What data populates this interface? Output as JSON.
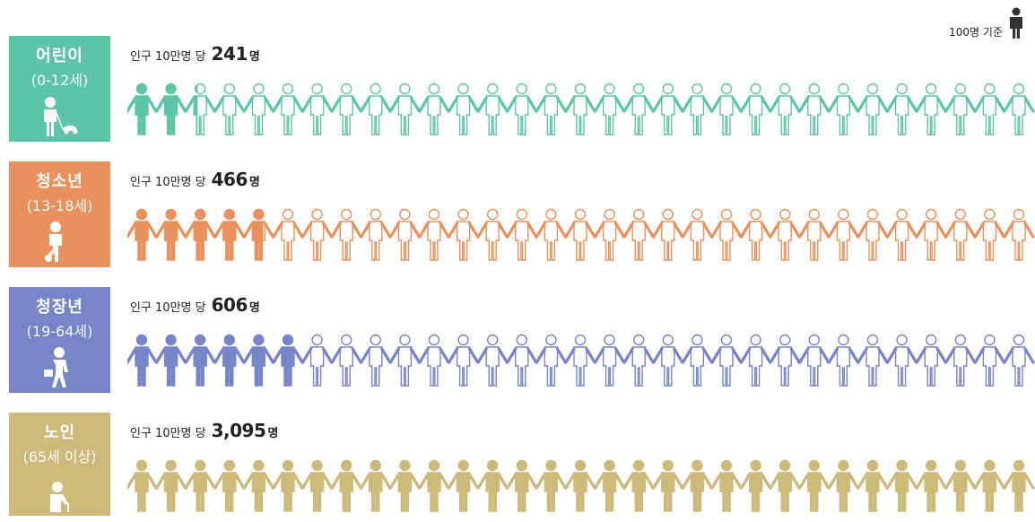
{
  "legend": {
    "text": "100명 기준",
    "icon": "person-icon"
  },
  "rate_prefix": "인구 10만명 당",
  "rate_unit": "명",
  "groups": [
    {
      "name": "어린이",
      "range": "(0-12세)",
      "value": "241",
      "color": "#5ec4a7",
      "icon": "child-icon"
    },
    {
      "name": "청소년",
      "range": "(13-18세)",
      "value": "466",
      "color": "#e8915d",
      "icon": "teen-soccer-icon"
    },
    {
      "name": "청장년",
      "range": "(19-64세)",
      "value": "606",
      "color": "#7585c8",
      "icon": "businessman-icon"
    },
    {
      "name": "노인",
      "range": "(65세 이상)",
      "value": "3,095",
      "color": "#cdb97a",
      "icon": "elderly-cane-icon"
    }
  ],
  "chart_data": {
    "type": "pictogram",
    "unit_per_icon": 100,
    "total_icons": 31,
    "categories": [
      "어린이 (0-12세)",
      "청소년 (13-18세)",
      "청장년 (19-64세)",
      "노인 (65세 이상)"
    ],
    "values": [
      241,
      466,
      606,
      3095
    ],
    "colors": [
      "#5ec4a7",
      "#e8915d",
      "#7585c8",
      "#cdb97a"
    ]
  }
}
